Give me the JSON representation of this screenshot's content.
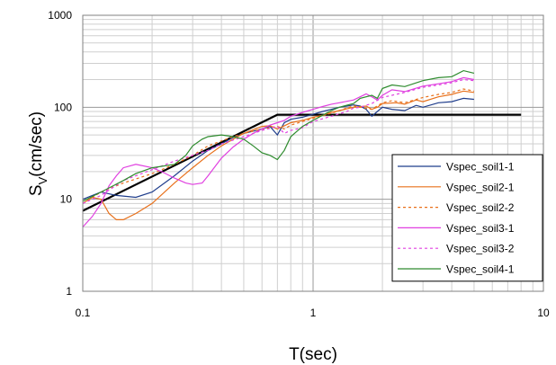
{
  "chart_data": {
    "type": "line",
    "x_scale": "log",
    "y_scale": "log",
    "xlim": [
      0.1,
      10
    ],
    "ylim": [
      1,
      1000
    ],
    "x_ticks": [
      0.1,
      1,
      10
    ],
    "x_tick_labels": [
      "0.1",
      "1",
      "10"
    ],
    "y_ticks": [
      1,
      10,
      100,
      1000
    ],
    "y_tick_labels": [
      "1",
      "10",
      "100",
      "1000"
    ],
    "xlabel": "T(sec)",
    "ylabel_main": "S",
    "ylabel_sub": "V",
    "ylabel_rest": "(cm/sec)",
    "grid": true,
    "legend_position": "bottom-right",
    "design_spectrum": {
      "color": "#000000",
      "points": [
        [
          0.1,
          7.5
        ],
        [
          0.7,
          83
        ],
        [
          8,
          83
        ]
      ]
    },
    "series": [
      {
        "name": "Vspec_soil1-1",
        "color": "#1f3d8c",
        "dash": "solid",
        "points": [
          [
            0.1,
            10
          ],
          [
            0.12,
            12
          ],
          [
            0.14,
            11
          ],
          [
            0.17,
            10.5
          ],
          [
            0.2,
            12
          ],
          [
            0.25,
            18
          ],
          [
            0.3,
            26
          ],
          [
            0.35,
            34
          ],
          [
            0.4,
            40
          ],
          [
            0.45,
            47
          ],
          [
            0.5,
            52
          ],
          [
            0.55,
            55
          ],
          [
            0.6,
            58
          ],
          [
            0.65,
            62
          ],
          [
            0.7,
            50
          ],
          [
            0.75,
            68
          ],
          [
            0.8,
            74
          ],
          [
            0.9,
            78
          ],
          [
            1.0,
            84
          ],
          [
            1.1,
            90
          ],
          [
            1.2,
            95
          ],
          [
            1.3,
            100
          ],
          [
            1.4,
            103
          ],
          [
            1.5,
            106
          ],
          [
            1.6,
            103
          ],
          [
            1.7,
            95
          ],
          [
            1.8,
            80
          ],
          [
            1.9,
            90
          ],
          [
            2.0,
            100
          ],
          [
            2.2,
            95
          ],
          [
            2.5,
            92
          ],
          [
            2.8,
            105
          ],
          [
            3.0,
            100
          ],
          [
            3.5,
            112
          ],
          [
            4.0,
            115
          ],
          [
            4.5,
            125
          ],
          [
            5.0,
            122
          ]
        ]
      },
      {
        "name": "Vspec_soil2-1",
        "color": "#e8701a",
        "dash": "solid",
        "points": [
          [
            0.1,
            9
          ],
          [
            0.11,
            10.5
          ],
          [
            0.12,
            10
          ],
          [
            0.13,
            7
          ],
          [
            0.14,
            6
          ],
          [
            0.15,
            6
          ],
          [
            0.17,
            7
          ],
          [
            0.2,
            9
          ],
          [
            0.25,
            15
          ],
          [
            0.3,
            22
          ],
          [
            0.35,
            30
          ],
          [
            0.4,
            38
          ],
          [
            0.45,
            45
          ],
          [
            0.5,
            52
          ],
          [
            0.55,
            57
          ],
          [
            0.6,
            62
          ],
          [
            0.65,
            63
          ],
          [
            0.7,
            58
          ],
          [
            0.75,
            63
          ],
          [
            0.8,
            68
          ],
          [
            0.9,
            72
          ],
          [
            1.0,
            78
          ],
          [
            1.1,
            82
          ],
          [
            1.2,
            88
          ],
          [
            1.3,
            92
          ],
          [
            1.4,
            96
          ],
          [
            1.5,
            100
          ],
          [
            1.7,
            103
          ],
          [
            1.8,
            95
          ],
          [
            1.9,
            100
          ],
          [
            2.0,
            110
          ],
          [
            2.3,
            112
          ],
          [
            2.5,
            108
          ],
          [
            2.8,
            120
          ],
          [
            3.0,
            115
          ],
          [
            3.5,
            130
          ],
          [
            4.0,
            138
          ],
          [
            4.5,
            150
          ],
          [
            5.0,
            145
          ]
        ]
      },
      {
        "name": "Vspec_soil2-2",
        "color": "#e8701a",
        "dash": "3,3",
        "points": [
          [
            0.1,
            9
          ],
          [
            0.12,
            12
          ],
          [
            0.15,
            15
          ],
          [
            0.2,
            19
          ],
          [
            0.25,
            24
          ],
          [
            0.3,
            30
          ],
          [
            0.35,
            38
          ],
          [
            0.4,
            43
          ],
          [
            0.45,
            48
          ],
          [
            0.5,
            52
          ],
          [
            0.6,
            58
          ],
          [
            0.7,
            62
          ],
          [
            0.75,
            58
          ],
          [
            0.8,
            64
          ],
          [
            0.9,
            70
          ],
          [
            1.0,
            76
          ],
          [
            1.2,
            86
          ],
          [
            1.4,
            98
          ],
          [
            1.5,
            104
          ],
          [
            1.6,
            100
          ],
          [
            1.8,
            95
          ],
          [
            2.0,
            112
          ],
          [
            2.2,
            118
          ],
          [
            2.5,
            112
          ],
          [
            3.0,
            128
          ],
          [
            3.5,
            138
          ],
          [
            4.0,
            145
          ],
          [
            4.5,
            158
          ],
          [
            5.0,
            150
          ]
        ]
      },
      {
        "name": "Vspec_soil3-1",
        "color": "#e040e0",
        "dash": "solid",
        "points": [
          [
            0.1,
            5
          ],
          [
            0.11,
            6.5
          ],
          [
            0.12,
            9
          ],
          [
            0.13,
            14
          ],
          [
            0.14,
            18
          ],
          [
            0.15,
            22
          ],
          [
            0.17,
            24
          ],
          [
            0.2,
            22
          ],
          [
            0.22,
            20
          ],
          [
            0.25,
            17
          ],
          [
            0.28,
            15
          ],
          [
            0.3,
            14.5
          ],
          [
            0.33,
            15
          ],
          [
            0.35,
            18
          ],
          [
            0.4,
            28
          ],
          [
            0.45,
            37
          ],
          [
            0.5,
            45
          ],
          [
            0.55,
            52
          ],
          [
            0.6,
            58
          ],
          [
            0.65,
            64
          ],
          [
            0.7,
            68
          ],
          [
            0.75,
            72
          ],
          [
            0.8,
            80
          ],
          [
            0.9,
            88
          ],
          [
            1.0,
            95
          ],
          [
            1.1,
            102
          ],
          [
            1.2,
            108
          ],
          [
            1.3,
            112
          ],
          [
            1.5,
            120
          ],
          [
            1.6,
            130
          ],
          [
            1.7,
            140
          ],
          [
            1.8,
            130
          ],
          [
            1.9,
            120
          ],
          [
            2.0,
            135
          ],
          [
            2.2,
            155
          ],
          [
            2.5,
            148
          ],
          [
            3.0,
            170
          ],
          [
            3.5,
            180
          ],
          [
            4.0,
            190
          ],
          [
            4.5,
            210
          ],
          [
            5.0,
            200
          ]
        ]
      },
      {
        "name": "Vspec_soil3-2",
        "color": "#e040e0",
        "dash": "3,3",
        "points": [
          [
            0.1,
            9
          ],
          [
            0.12,
            11
          ],
          [
            0.15,
            16
          ],
          [
            0.2,
            21
          ],
          [
            0.25,
            26
          ],
          [
            0.3,
            30
          ],
          [
            0.35,
            34
          ],
          [
            0.4,
            40
          ],
          [
            0.5,
            48
          ],
          [
            0.6,
            56
          ],
          [
            0.7,
            62
          ],
          [
            0.75,
            52
          ],
          [
            0.8,
            56
          ],
          [
            0.9,
            60
          ],
          [
            1.0,
            70
          ],
          [
            1.2,
            80
          ],
          [
            1.4,
            90
          ],
          [
            1.5,
            98
          ],
          [
            1.6,
            100
          ],
          [
            1.8,
            110
          ],
          [
            2.0,
            128
          ],
          [
            2.5,
            145
          ],
          [
            3.0,
            165
          ],
          [
            3.5,
            175
          ],
          [
            4.0,
            185
          ],
          [
            4.5,
            200
          ],
          [
            5.0,
            195
          ]
        ]
      },
      {
        "name": "Vspec_soil4-1",
        "color": "#2e8b2e",
        "dash": "solid",
        "points": [
          [
            0.1,
            9.5
          ],
          [
            0.12,
            12
          ],
          [
            0.15,
            16
          ],
          [
            0.17,
            19
          ],
          [
            0.2,
            22
          ],
          [
            0.25,
            24
          ],
          [
            0.28,
            30
          ],
          [
            0.3,
            38
          ],
          [
            0.33,
            45
          ],
          [
            0.35,
            48
          ],
          [
            0.4,
            50
          ],
          [
            0.45,
            48
          ],
          [
            0.5,
            45
          ],
          [
            0.55,
            38
          ],
          [
            0.6,
            32
          ],
          [
            0.65,
            30
          ],
          [
            0.7,
            27
          ],
          [
            0.75,
            34
          ],
          [
            0.8,
            48
          ],
          [
            0.9,
            62
          ],
          [
            1.0,
            72
          ],
          [
            1.1,
            82
          ],
          [
            1.2,
            92
          ],
          [
            1.3,
            100
          ],
          [
            1.5,
            110
          ],
          [
            1.6,
            125
          ],
          [
            1.8,
            135
          ],
          [
            1.9,
            125
          ],
          [
            2.0,
            160
          ],
          [
            2.2,
            175
          ],
          [
            2.5,
            168
          ],
          [
            3.0,
            195
          ],
          [
            3.5,
            210
          ],
          [
            4.0,
            215
          ],
          [
            4.5,
            250
          ],
          [
            5.0,
            235
          ]
        ]
      }
    ]
  }
}
